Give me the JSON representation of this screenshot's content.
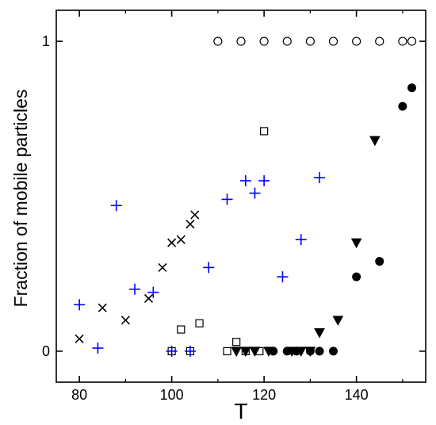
{
  "chart_data": {
    "type": "scatter",
    "title": "",
    "xlabel": "T",
    "ylabel": "Fraction of mobile particles",
    "xlim": [
      75,
      155
    ],
    "ylim": [
      -0.1,
      1.1
    ],
    "x_ticks": [
      80,
      100,
      120,
      140
    ],
    "x_tick_labels": [
      "80",
      "100",
      "120",
      "140"
    ],
    "y_ticks": [
      0,
      1
    ],
    "y_tick_labels": [
      "0",
      "1"
    ],
    "grid": false,
    "legend": "none",
    "series": [
      {
        "marker": "open-circle",
        "color": "#000000",
        "points": [
          [
            110,
            1
          ],
          [
            115,
            1
          ],
          [
            120,
            1
          ],
          [
            125,
            1
          ],
          [
            130,
            1
          ],
          [
            135,
            1
          ],
          [
            140,
            1
          ],
          [
            145,
            1
          ],
          [
            150,
            1
          ],
          [
            152,
            1
          ]
        ]
      },
      {
        "marker": "filled-circle",
        "color": "#000000",
        "points": [
          [
            122,
            0
          ],
          [
            125,
            0
          ],
          [
            127,
            0
          ],
          [
            130,
            0
          ],
          [
            132,
            0
          ],
          [
            135,
            0
          ],
          [
            140,
            0.24
          ],
          [
            145,
            0.29
          ],
          [
            150,
            0.79
          ],
          [
            152,
            0.85
          ]
        ]
      },
      {
        "marker": "filled-triangle-down",
        "color": "#000000",
        "points": [
          [
            114,
            0
          ],
          [
            116,
            0
          ],
          [
            118,
            0
          ],
          [
            121,
            0
          ],
          [
            126,
            0
          ],
          [
            128,
            0
          ],
          [
            130,
            0
          ],
          [
            132,
            0.06
          ],
          [
            136,
            0.1
          ],
          [
            140,
            0.35
          ],
          [
            144,
            0.68
          ]
        ]
      },
      {
        "marker": "open-square",
        "color": "#000000",
        "points": [
          [
            100,
            0
          ],
          [
            102,
            0.07
          ],
          [
            104,
            0
          ],
          [
            106,
            0.09
          ],
          [
            112,
            0
          ],
          [
            114,
            0.03
          ],
          [
            116,
            0
          ],
          [
            119,
            0
          ],
          [
            120,
            0.71
          ]
        ]
      },
      {
        "marker": "x",
        "color": "#000000",
        "points": [
          [
            80,
            0.04
          ],
          [
            85,
            0.14
          ],
          [
            90,
            0.1
          ],
          [
            95,
            0.17
          ],
          [
            98,
            0.27
          ],
          [
            100,
            0.35
          ],
          [
            102,
            0.36
          ],
          [
            104,
            0.41
          ],
          [
            105,
            0.44
          ]
        ]
      },
      {
        "marker": "plus",
        "color": "#0000ff",
        "points": [
          [
            80,
            0.15
          ],
          [
            84,
            0.01
          ],
          [
            88,
            0.47
          ],
          [
            92,
            0.2
          ],
          [
            96,
            0.19
          ],
          [
            100,
            0
          ],
          [
            104,
            0
          ],
          [
            108,
            0.27
          ],
          [
            112,
            0.49
          ],
          [
            116,
            0.55
          ],
          [
            118,
            0.51
          ],
          [
            120,
            0.55
          ],
          [
            124,
            0.24
          ],
          [
            128,
            0.36
          ],
          [
            132,
            0.56
          ]
        ]
      }
    ]
  }
}
